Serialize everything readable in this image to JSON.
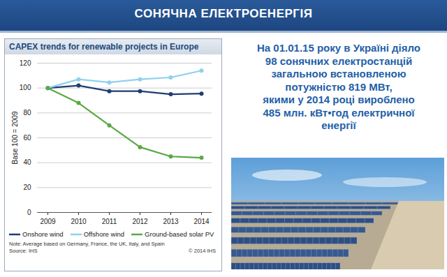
{
  "slide": {
    "header": "СОНЯЧНА ЕЛЕКТРОЕНЕРГІЯ",
    "text": [
      "На 01.01.15 року в Україні діяло",
      "98 сонячних електростанцій",
      "загальною встановленою",
      "потужністю 819 МВт,",
      "якими у 2014 році вироблено",
      "485 млн. кВт•год електричної",
      "енергії"
    ]
  },
  "chart_data": {
    "type": "line",
    "title": "CAPEX trends for renewable projects in Europe",
    "y_label": "Base 100 = 2009",
    "categories": [
      "2009",
      "2010",
      "2011",
      "2012",
      "2013",
      "2014"
    ],
    "series": [
      {
        "name": "Onshore wind",
        "color": "#1f3e72",
        "marker": "circle",
        "line_style": "solid",
        "values": [
          100,
          102,
          97.5,
          97.5,
          95,
          95.5
        ]
      },
      {
        "name": "Offshore wind",
        "color": "#8fd1ee",
        "marker": "circle",
        "line_style": "solid",
        "values": [
          100,
          107,
          104.5,
          107,
          108.5,
          114
        ]
      },
      {
        "name": "Ground-based solar PV",
        "color": "#5aa845",
        "marker": "circle",
        "line_style": "solid",
        "values": [
          100,
          88,
          70,
          52.5,
          45,
          44
        ]
      }
    ],
    "ylim": [
      0,
      120
    ],
    "yticks": [
      0,
      20,
      40,
      60,
      80,
      100,
      120
    ],
    "grid": true,
    "legend": "bottom",
    "note": "Note: Average based on Germany, France, the UK, Italy, and Spain",
    "source": "Source: IHS",
    "copyright": "© 2014 IHS"
  }
}
